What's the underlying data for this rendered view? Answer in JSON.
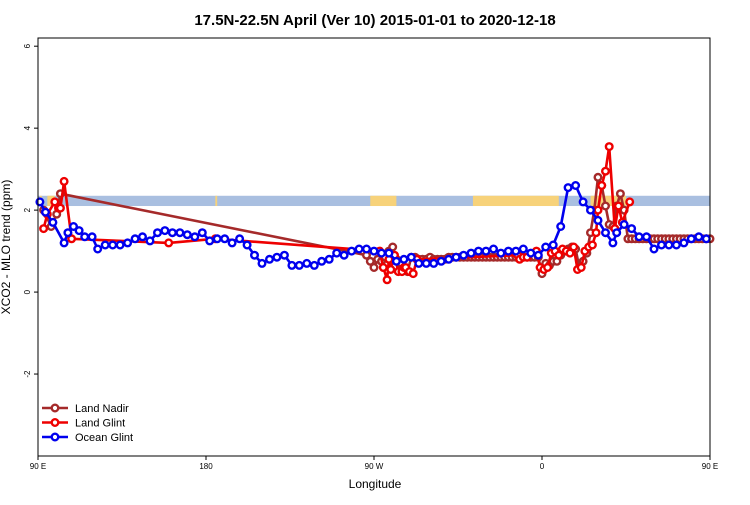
{
  "chart_data": {
    "type": "line",
    "title": "17.5N-22.5N April (Ver 10)   2015-01-01 to 2020-12-18",
    "xlabel": "Longitude",
    "ylabel": "XCO2 - MLO trend (ppm)",
    "xlim": [
      90,
      450
    ],
    "ylim": [
      -4,
      6.2
    ],
    "x_ticks": [
      {
        "value": 90,
        "label": "90 E"
      },
      {
        "value": 180,
        "label": "180"
      },
      {
        "value": 270,
        "label": "90 W"
      },
      {
        "value": 360,
        "label": "0"
      },
      {
        "value": 450,
        "label": "90 E"
      },
      {
        "value": 540,
        "label": "180"
      }
    ],
    "y_ticks": [
      {
        "value": -2,
        "label": "-2"
      },
      {
        "value": 0,
        "label": "0"
      },
      {
        "value": 2,
        "label": "2"
      },
      {
        "value": 4,
        "label": "4"
      },
      {
        "value": 6,
        "label": "6"
      }
    ],
    "legend_position": "bottom-left",
    "land_mask_band": {
      "y_range": [
        2.1,
        2.35
      ],
      "ocean_color": "#a9bfe0",
      "land_color": "#f7d27a",
      "land_x_ranges": [
        [
          91,
          92
        ],
        [
          95,
          99
        ],
        [
          185,
          186
        ],
        [
          268,
          282
        ],
        [
          323,
          369
        ],
        [
          386,
          405
        ],
        [
          467,
          496
        ]
      ]
    },
    "series": [
      {
        "name": "Land Nadir",
        "color": "#a52a2a",
        "x": [
          93,
          97,
          100,
          102,
          266,
          268,
          270,
          272,
          274,
          276,
          278,
          280,
          282,
          284,
          288,
          290,
          292,
          294,
          296,
          298,
          300,
          302,
          304,
          306,
          308,
          310,
          312,
          314,
          316,
          318,
          320,
          322,
          324,
          326,
          328,
          330,
          332,
          334,
          336,
          338,
          340,
          342,
          344,
          346,
          348,
          350,
          352,
          354,
          356,
          358,
          360,
          362,
          364,
          366,
          368,
          370,
          372,
          374,
          376,
          378,
          380,
          382,
          384,
          386,
          388,
          390,
          392,
          394,
          396,
          398,
          400,
          402,
          404,
          406,
          408,
          410,
          412,
          414,
          416,
          418,
          420,
          422,
          424,
          426,
          428,
          430,
          432,
          434,
          436,
          438,
          440,
          442,
          444,
          446,
          448,
          450
        ],
        "y": [
          2.0,
          1.6,
          1.9,
          2.4,
          0.9,
          0.75,
          0.6,
          0.8,
          0.75,
          0.85,
          1.0,
          1.1,
          0.8,
          0.55,
          0.5,
          0.85,
          0.85,
          0.8,
          0.8,
          0.8,
          0.85,
          0.8,
          0.8,
          0.8,
          0.8,
          0.85,
          0.85,
          0.85,
          0.85,
          0.85,
          0.85,
          0.85,
          0.85,
          0.85,
          0.85,
          0.85,
          0.85,
          0.85,
          0.85,
          0.85,
          0.85,
          0.85,
          0.85,
          0.85,
          0.85,
          0.85,
          0.85,
          0.85,
          0.85,
          0.85,
          0.45,
          0.7,
          0.65,
          0.75,
          0.75,
          0.9,
          1.0,
          1.05,
          1.1,
          1.05,
          0.6,
          0.75,
          0.95,
          1.45,
          2.0,
          2.8,
          2.6,
          2.1,
          1.65,
          1.6,
          2.1,
          2.4,
          2.0,
          1.3,
          1.3,
          1.3,
          1.3,
          1.3,
          1.3,
          1.3,
          1.3,
          1.3,
          1.3,
          1.3,
          1.3,
          1.3,
          1.3,
          1.3,
          1.3,
          1.3,
          1.3,
          1.3,
          1.3,
          1.3,
          1.3,
          1.3
        ]
      },
      {
        "name": "Land Glint",
        "color": "#ee0000",
        "x": [
          93,
          95,
          99,
          101,
          102,
          104,
          108,
          160,
          185,
          273,
          275,
          277,
          278,
          279,
          281,
          283,
          285,
          286,
          287,
          289,
          291,
          293,
          347,
          348,
          350,
          352,
          357,
          359,
          361,
          363,
          365,
          367,
          369,
          371,
          373,
          375,
          377,
          379,
          381,
          383,
          385,
          387,
          389,
          390,
          392,
          394,
          396,
          399,
          401,
          403,
          407
        ],
        "y": [
          1.55,
          1.9,
          2.2,
          2.05,
          2.05,
          2.7,
          1.3,
          1.2,
          1.3,
          1.0,
          0.6,
          0.3,
          0.8,
          0.55,
          0.9,
          0.5,
          0.5,
          0.6,
          0.6,
          0.5,
          0.45,
          0.8,
          0.9,
          0.8,
          0.85,
          0.85,
          1.0,
          0.6,
          0.55,
          0.6,
          0.95,
          1.0,
          0.9,
          1.05,
          1.0,
          0.95,
          1.1,
          0.55,
          0.6,
          1.0,
          1.1,
          1.15,
          1.45,
          2.0,
          2.6,
          2.95,
          3.55,
          1.55,
          2.1,
          1.7,
          2.2
        ]
      },
      {
        "name": "Ocean Glint",
        "color": "#0000ee",
        "x": [
          91,
          94,
          98,
          104,
          106,
          109,
          112,
          115,
          119,
          122,
          126,
          130,
          134,
          138,
          142,
          146,
          150,
          154,
          158,
          162,
          166,
          170,
          174,
          178,
          182,
          186,
          190,
          194,
          198,
          202,
          206,
          210,
          214,
          218,
          222,
          226,
          230,
          234,
          238,
          242,
          246,
          250,
          254,
          258,
          262,
          266,
          270,
          274,
          278,
          282,
          286,
          290,
          294,
          298,
          302,
          306,
          310,
          314,
          318,
          322,
          326,
          330,
          334,
          338,
          342,
          346,
          350,
          354,
          358,
          362,
          366,
          370,
          374,
          378,
          382,
          386,
          390,
          394,
          398,
          400,
          404,
          408,
          412,
          416,
          420,
          424,
          428,
          432,
          436,
          440,
          444,
          448
        ],
        "y": [
          2.2,
          1.95,
          1.7,
          1.2,
          1.45,
          1.6,
          1.5,
          1.35,
          1.35,
          1.05,
          1.15,
          1.15,
          1.15,
          1.2,
          1.3,
          1.35,
          1.25,
          1.45,
          1.5,
          1.45,
          1.45,
          1.4,
          1.35,
          1.45,
          1.25,
          1.3,
          1.3,
          1.2,
          1.3,
          1.15,
          0.9,
          0.7,
          0.8,
          0.85,
          0.9,
          0.65,
          0.65,
          0.7,
          0.65,
          0.75,
          0.8,
          0.95,
          0.9,
          1.0,
          1.05,
          1.05,
          1.0,
          0.95,
          0.95,
          0.75,
          0.8,
          0.85,
          0.7,
          0.7,
          0.7,
          0.75,
          0.8,
          0.85,
          0.9,
          0.95,
          1.0,
          1.0,
          1.05,
          0.95,
          1.0,
          1.0,
          1.05,
          0.95,
          0.9,
          1.1,
          1.15,
          1.6,
          2.55,
          2.6,
          2.2,
          2.0,
          1.75,
          1.45,
          1.2,
          1.45,
          1.65,
          1.55,
          1.35,
          1.35,
          1.05,
          1.15,
          1.15,
          1.15,
          1.2,
          1.3,
          1.35,
          1.3
        ]
      }
    ]
  }
}
